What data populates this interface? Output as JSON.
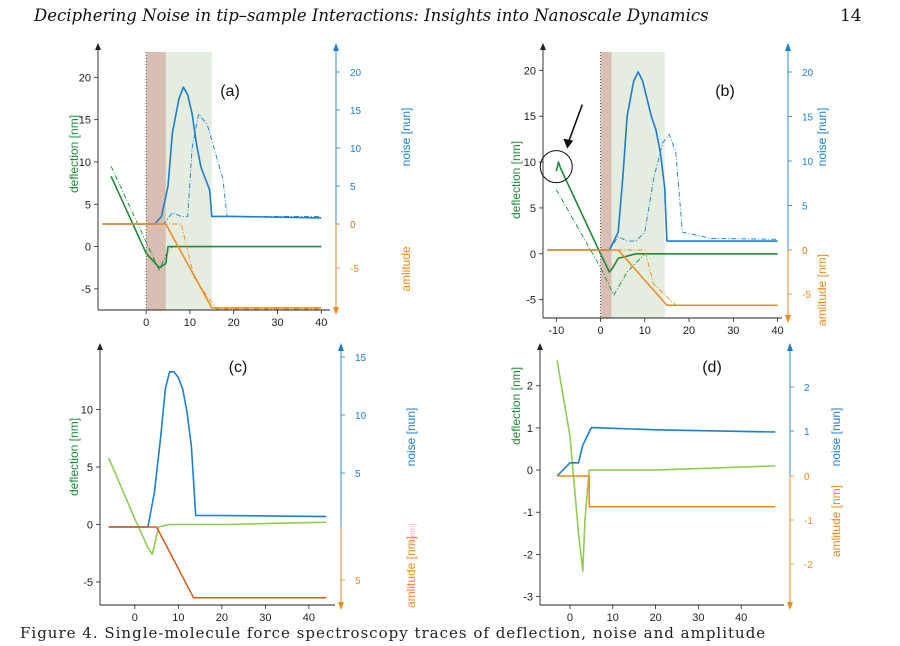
{
  "header": {
    "title": "Deciphering Noise in tip–sample Interactions: Insights into Nanoscale Dynamics",
    "page": "14"
  },
  "caption": "Figure 4. Single-molecule force spectroscopy traces of deflection, noise and amplitude",
  "colors": {
    "deflection_dark": "#1f8a3a",
    "deflection_light": "#8fce52",
    "noise": "#1a7fd1",
    "amplitude": "#f08a1a",
    "amplitude_dark": "#d9581a",
    "pink_band": "#d9bfb3",
    "green_band": "#e5ece0"
  },
  "chart_data": [
    {
      "type": "line",
      "panel_label": "(a)",
      "left_axis": {
        "label": "deflection [nm]",
        "range": [
          -7.5,
          23
        ],
        "ticks": [
          "20",
          "15",
          "10",
          "5",
          "0",
          "-5"
        ]
      },
      "right_axis_top": {
        "label": "noise [nun]",
        "ticks": [
          "20",
          "15",
          "10",
          "5",
          "0"
        ]
      },
      "right_axis_bottom": {
        "label": "amlitude",
        "ticks": [
          "0",
          "-5"
        ]
      },
      "x_axis": {
        "range": [
          -11,
          42
        ],
        "ticks": [
          "0",
          "10",
          "20",
          "30",
          "40"
        ]
      },
      "bands": {
        "pink": [
          0,
          4.5
        ],
        "green": [
          4.5,
          15
        ]
      },
      "series": [
        {
          "role": "deflection",
          "x": [
            -8,
            0,
            3,
            4.5,
            5,
            8,
            20,
            40
          ],
          "y": [
            8.3,
            -0.8,
            -2.5,
            -2,
            0,
            0,
            0,
            0
          ]
        },
        {
          "role": "deflection_dashed",
          "x": [
            -8,
            0,
            3,
            4.5,
            6,
            40
          ],
          "y": [
            9.5,
            0.5,
            -2.8,
            -1,
            0,
            0
          ]
        },
        {
          "role": "noise",
          "x": [
            -10,
            2,
            3.5,
            5,
            6,
            7.5,
            8.5,
            9.5,
            10.5,
            11.5,
            12.5,
            13.5,
            14.5,
            15,
            20,
            40
          ],
          "y": [
            0,
            0,
            1,
            5,
            12,
            16.5,
            18,
            17,
            14.5,
            10.5,
            7.5,
            6,
            4.5,
            1,
            1,
            0.8
          ]
        },
        {
          "role": "noise_dashed",
          "x": [
            -10,
            4,
            6,
            8,
            9.5,
            10.5,
            12,
            14,
            15.5,
            17.5,
            18.5,
            25,
            40
          ],
          "y": [
            0,
            0,
            1.5,
            1,
            1,
            10,
            14.5,
            13,
            10,
            6,
            1,
            1,
            1
          ]
        },
        {
          "role": "amplitude",
          "x": [
            -10,
            4.5,
            15,
            40
          ],
          "y": [
            0,
            0,
            -7.8,
            -7.8
          ]
        },
        {
          "role": "amplitude_dashed",
          "x": [
            -10,
            8,
            11,
            16,
            40
          ],
          "y": [
            0,
            0,
            -5,
            -7.9,
            -7.9
          ]
        }
      ]
    },
    {
      "type": "line",
      "panel_label": "(b)",
      "left_axis": {
        "label": "deflection [nm]",
        "range": [
          -7,
          22
        ],
        "ticks": [
          "20",
          "15",
          "10",
          "5",
          "0",
          "-5"
        ]
      },
      "right_axis_top": {
        "label": "noise [nun]",
        "ticks": [
          "20",
          "15",
          "10",
          "5",
          "0"
        ]
      },
      "right_axis_bottom": {
        "label": "amlitude [nm]",
        "ticks": [
          "0",
          "-5"
        ]
      },
      "x_axis": {
        "range": [
          -13,
          41
        ],
        "ticks": [
          "-10",
          "0",
          "10",
          "20",
          "30",
          "40"
        ]
      },
      "bands": {
        "pink": [
          0,
          2.5
        ],
        "green": [
          2.5,
          14.5
        ]
      },
      "annotation": "arrow pointing to circled kink at x=-10",
      "series": [
        {
          "role": "deflection",
          "x": [
            -10,
            -9.5,
            -9,
            0,
            2,
            2.8,
            4,
            8,
            40
          ],
          "y": [
            9,
            10,
            9.3,
            0,
            -2,
            -1.5,
            -0.5,
            0,
            0
          ]
        },
        {
          "role": "deflection_dashed",
          "x": [
            -10,
            0,
            3,
            6,
            10,
            40
          ],
          "y": [
            7,
            -1.5,
            -4.5,
            -2,
            0,
            0
          ]
        },
        {
          "role": "noise",
          "x": [
            -12,
            2,
            4,
            5,
            6,
            7.5,
            8.5,
            9.5,
            10.5,
            11.5,
            12.5,
            13.5,
            14.5,
            15,
            40
          ],
          "y": [
            0,
            0,
            2,
            8,
            15,
            19,
            20,
            19,
            17,
            15,
            13.5,
            11,
            7,
            1,
            1
          ]
        },
        {
          "role": "noise_dashed",
          "x": [
            -12,
            2,
            4,
            6,
            8,
            10,
            12,
            14,
            15.5,
            17,
            18.5,
            25,
            40
          ],
          "y": [
            0,
            0,
            1.5,
            1,
            1,
            2,
            8,
            12,
            13,
            11,
            2,
            1.3,
            1.2
          ]
        },
        {
          "role": "amplitude",
          "x": [
            -12,
            4,
            15,
            40
          ],
          "y": [
            0,
            0,
            -6.5,
            -6.5
          ]
        },
        {
          "role": "amplitude_dashed",
          "x": [
            -12,
            10,
            12,
            17,
            40
          ],
          "y": [
            0,
            0,
            -4,
            -6.5,
            -6.5
          ]
        }
      ]
    },
    {
      "type": "line",
      "panel_label": "(c)",
      "left_axis": {
        "label": "deflection [nm]",
        "range": [
          -7,
          15
        ],
        "ticks": [
          "10",
          "5",
          "0",
          "-5"
        ]
      },
      "right_axis_top": {
        "label": "noise [nun]",
        "ticks": [
          "15",
          "10",
          "5"
        ]
      },
      "right_axis_bottom": {
        "label": "amlitude [nm]",
        "ticks": [
          "5"
        ]
      },
      "right_axis_small_label": "A [nm]",
      "x_axis": {
        "range": [
          -8,
          46
        ],
        "ticks": [
          "0",
          "10",
          "20",
          "30",
          "40"
        ]
      },
      "series": [
        {
          "role": "deflection",
          "x": [
            -6,
            0,
            3,
            4,
            5.5,
            8,
            20,
            44
          ],
          "y": [
            5.8,
            0.5,
            -2,
            -2.6,
            -0.2,
            0,
            0,
            0.2
          ]
        },
        {
          "role": "noise",
          "x": [
            -6,
            3,
            4.5,
            6,
            7,
            8,
            9,
            10,
            11,
            12,
            13,
            14,
            20,
            44
          ],
          "y": [
            0,
            0,
            3,
            8,
            12,
            13.5,
            13.5,
            13,
            12,
            10,
            7,
            1,
            1,
            0.9
          ]
        },
        {
          "role": "amplitude",
          "x": [
            -6,
            5,
            13.5,
            44
          ],
          "y": [
            0,
            0,
            -6,
            -6
          ]
        }
      ]
    },
    {
      "type": "line",
      "panel_label": "(d)",
      "left_axis": {
        "label": "deflection [nm]",
        "range": [
          -3.2,
          2.8
        ],
        "ticks": [
          "2",
          "1",
          "0",
          "-1",
          "-2",
          "-3"
        ]
      },
      "right_axis_top": {
        "label": "noise [nun]",
        "ticks": [
          "2",
          "1"
        ]
      },
      "right_axis_bottom": {
        "label": "amlitude [nm]",
        "ticks": [
          "0",
          "-1",
          "-2"
        ]
      },
      "x_axis": {
        "range": [
          -7,
          50
        ],
        "ticks": [
          "0",
          "10",
          "20",
          "30",
          "40"
        ]
      },
      "series": [
        {
          "role": "deflection",
          "x": [
            -3,
            0,
            2,
            3,
            3.5,
            4.5,
            20,
            48
          ],
          "y": [
            2.6,
            0.8,
            -1.5,
            -2.4,
            -1.2,
            0,
            0,
            0.1
          ]
        },
        {
          "role": "noise",
          "x": [
            -3,
            0,
            2,
            3,
            4.5,
            5,
            20,
            48
          ],
          "y": [
            0,
            0.3,
            0.3,
            0.7,
            1,
            1.1,
            1.05,
            1.0
          ]
        },
        {
          "role": "amplitude",
          "x": [
            -3,
            4.5,
            4.5,
            48
          ],
          "y": [
            0,
            0,
            -0.7,
            -0.7
          ]
        }
      ]
    }
  ]
}
